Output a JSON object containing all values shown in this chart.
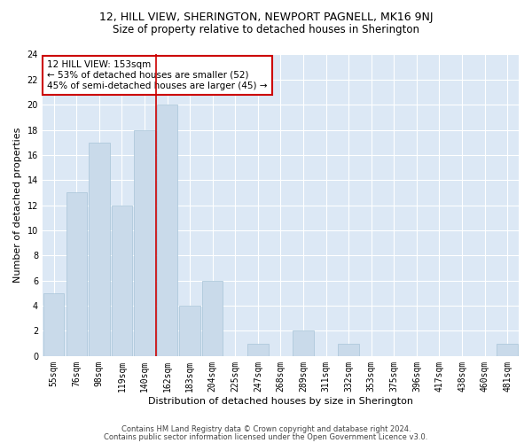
{
  "title1": "12, HILL VIEW, SHERINGTON, NEWPORT PAGNELL, MK16 9NJ",
  "title2": "Size of property relative to detached houses in Sherington",
  "xlabel": "Distribution of detached houses by size in Sherington",
  "ylabel": "Number of detached properties",
  "categories": [
    "55sqm",
    "76sqm",
    "98sqm",
    "119sqm",
    "140sqm",
    "162sqm",
    "183sqm",
    "204sqm",
    "225sqm",
    "247sqm",
    "268sqm",
    "289sqm",
    "311sqm",
    "332sqm",
    "353sqm",
    "375sqm",
    "396sqm",
    "417sqm",
    "438sqm",
    "460sqm",
    "481sqm"
  ],
  "values": [
    5,
    13,
    17,
    12,
    18,
    20,
    4,
    6,
    0,
    1,
    0,
    2,
    0,
    1,
    0,
    0,
    0,
    0,
    0,
    0,
    1
  ],
  "bar_color": "#c9daea",
  "bar_edge_color": "#a8c4d8",
  "annotation_text": "12 HILL VIEW: 153sqm\n← 53% of detached houses are smaller (52)\n45% of semi-detached houses are larger (45) →",
  "annotation_box_color": "#ffffff",
  "annotation_box_edge": "#cc0000",
  "vline_color": "#cc0000",
  "vline_x_index": 4.5,
  "ylim": [
    0,
    24
  ],
  "yticks": [
    0,
    2,
    4,
    6,
    8,
    10,
    12,
    14,
    16,
    18,
    20,
    22,
    24
  ],
  "footer1": "Contains HM Land Registry data © Crown copyright and database right 2024.",
  "footer2": "Contains public sector information licensed under the Open Government Licence v3.0.",
  "bg_color": "#dce8f5",
  "grid_color": "#ffffff",
  "title1_fontsize": 9,
  "title2_fontsize": 8.5,
  "xlabel_fontsize": 8,
  "ylabel_fontsize": 8,
  "tick_fontsize": 7,
  "annot_fontsize": 7.5,
  "footer_fontsize": 6
}
